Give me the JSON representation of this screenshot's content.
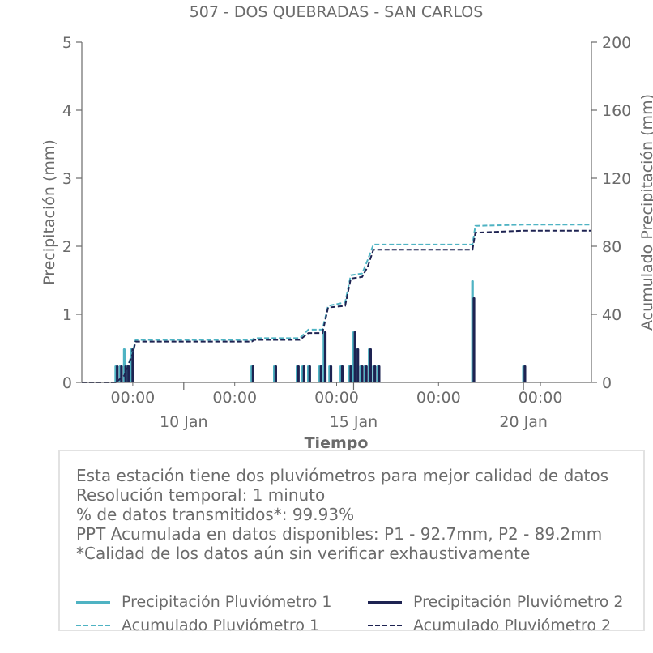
{
  "chart_data": {
    "type": "bar+line",
    "title": "507 - DOS QUEBRADAS - SAN CARLOS",
    "xlabel": "Tiempo",
    "ylabel": "Precipitación (mm)",
    "y2label": "Acumulado Precipitación (mm)",
    "ylim": [
      0,
      5
    ],
    "y2lim": [
      0,
      200
    ],
    "yticks": [
      "0",
      "1",
      "2",
      "3",
      "4",
      "5"
    ],
    "y2ticks": [
      "0",
      "40",
      "80",
      "120",
      "160",
      "200"
    ],
    "xlim": [
      "2024-01-07 00:00",
      "2024-01-22 00:00"
    ],
    "xticks_major": [
      {
        "x": "2024-01-10 00:00",
        "label": "10 Jan"
      },
      {
        "x": "2024-01-15 00:00",
        "label": "15 Jan"
      },
      {
        "x": "2024-01-20 00:00",
        "label": "20 Jan"
      }
    ],
    "xticks_minor": [
      {
        "x": "2024-01-08 12:00",
        "label": "00:00"
      },
      {
        "x": "2024-01-11 12:00",
        "label": "00:00"
      },
      {
        "x": "2024-01-14 12:00",
        "label": "00:00"
      },
      {
        "x": "2024-01-17 12:00",
        "label": "00:00"
      },
      {
        "x": "2024-01-20 12:00",
        "label": "00:00"
      }
    ],
    "legend_position": "bottom",
    "series": [
      {
        "name": "Precipitación Pluviómetro 1",
        "kind": "bar",
        "axis": "left",
        "color": "#4fb3c3",
        "points": [
          [
            "2024-01-08 00:00",
            0.25
          ],
          [
            "2024-01-08 03:00",
            0.25
          ],
          [
            "2024-01-08 06:00",
            0.5
          ],
          [
            "2024-01-08 08:00",
            0.25
          ],
          [
            "2024-01-08 11:00",
            0.5
          ],
          [
            "2024-01-12 00:00",
            0.25
          ],
          [
            "2024-01-12 16:00",
            0.25
          ],
          [
            "2024-01-13 08:00",
            0.25
          ],
          [
            "2024-01-13 12:00",
            0.25
          ],
          [
            "2024-01-13 16:00",
            0.25
          ],
          [
            "2024-01-14 00:00",
            0.25
          ],
          [
            "2024-01-14 03:00",
            0.75
          ],
          [
            "2024-01-14 07:00",
            0.25
          ],
          [
            "2024-01-14 15:00",
            0.25
          ],
          [
            "2024-01-14 21:00",
            0.25
          ],
          [
            "2024-01-15 00:00",
            0.75
          ],
          [
            "2024-01-15 02:00",
            0.5
          ],
          [
            "2024-01-15 05:00",
            0.25
          ],
          [
            "2024-01-15 08:00",
            0.25
          ],
          [
            "2024-01-15 11:00",
            0.5
          ],
          [
            "2024-01-15 14:00",
            0.25
          ],
          [
            "2024-01-15 17:00",
            0.25
          ],
          [
            "2024-01-18 12:00",
            1.5
          ],
          [
            "2024-01-20 00:00",
            0.25
          ]
        ]
      },
      {
        "name": "Precipitación Pluviómetro 2",
        "kind": "bar",
        "axis": "left",
        "color": "#1e2352",
        "points": [
          [
            "2024-01-08 01:00",
            0.25
          ],
          [
            "2024-01-08 04:00",
            0.25
          ],
          [
            "2024-01-08 07:00",
            0.25
          ],
          [
            "2024-01-08 09:00",
            0.25
          ],
          [
            "2024-01-08 12:00",
            0.5
          ],
          [
            "2024-01-12 01:00",
            0.25
          ],
          [
            "2024-01-12 17:00",
            0.25
          ],
          [
            "2024-01-13 09:00",
            0.25
          ],
          [
            "2024-01-13 13:00",
            0.25
          ],
          [
            "2024-01-13 17:00",
            0.25
          ],
          [
            "2024-01-14 01:00",
            0.25
          ],
          [
            "2024-01-14 04:00",
            0.75
          ],
          [
            "2024-01-14 08:00",
            0.25
          ],
          [
            "2024-01-14 16:00",
            0.25
          ],
          [
            "2024-01-14 22:00",
            0.25
          ],
          [
            "2024-01-15 01:00",
            0.75
          ],
          [
            "2024-01-15 03:00",
            0.5
          ],
          [
            "2024-01-15 06:00",
            0.25
          ],
          [
            "2024-01-15 09:00",
            0.25
          ],
          [
            "2024-01-15 12:00",
            0.5
          ],
          [
            "2024-01-15 15:00",
            0.25
          ],
          [
            "2024-01-15 18:00",
            0.25
          ],
          [
            "2024-01-18 13:00",
            1.25
          ],
          [
            "2024-01-20 01:00",
            0.25
          ]
        ]
      },
      {
        "name": "Acumulado Pluviómetro 1",
        "kind": "line",
        "axis": "right",
        "style": "dashed",
        "color": "#4fb3c3",
        "points": [
          [
            "2024-01-07 00:00",
            0
          ],
          [
            "2024-01-08 00:00",
            0
          ],
          [
            "2024-01-08 06:00",
            4
          ],
          [
            "2024-01-08 12:00",
            18
          ],
          [
            "2024-01-08 14:00",
            25
          ],
          [
            "2024-01-12 00:00",
            25
          ],
          [
            "2024-01-12 02:00",
            26
          ],
          [
            "2024-01-13 10:00",
            26
          ],
          [
            "2024-01-13 16:00",
            31
          ],
          [
            "2024-01-14 02:00",
            31
          ],
          [
            "2024-01-14 06:00",
            45
          ],
          [
            "2024-01-14 18:00",
            47
          ],
          [
            "2024-01-14 22:00",
            63
          ],
          [
            "2024-01-15 06:00",
            64
          ],
          [
            "2024-01-15 10:00",
            72
          ],
          [
            "2024-01-15 14:00",
            81
          ],
          [
            "2024-01-18 12:00",
            81
          ],
          [
            "2024-01-18 14:00",
            92
          ],
          [
            "2024-01-20 00:00",
            92.7
          ],
          [
            "2024-01-22 00:00",
            92.7
          ]
        ]
      },
      {
        "name": "Acumulado Pluviómetro 2",
        "kind": "line",
        "axis": "right",
        "style": "dashed",
        "color": "#1e2352",
        "points": [
          [
            "2024-01-07 00:00",
            0
          ],
          [
            "2024-01-08 00:00",
            0
          ],
          [
            "2024-01-08 06:00",
            4
          ],
          [
            "2024-01-08 12:00",
            17
          ],
          [
            "2024-01-08 14:00",
            24
          ],
          [
            "2024-01-12 00:00",
            24
          ],
          [
            "2024-01-12 02:00",
            25
          ],
          [
            "2024-01-13 10:00",
            25
          ],
          [
            "2024-01-13 16:00",
            29
          ],
          [
            "2024-01-14 02:00",
            29
          ],
          [
            "2024-01-14 06:00",
            44
          ],
          [
            "2024-01-14 18:00",
            45
          ],
          [
            "2024-01-14 22:00",
            61
          ],
          [
            "2024-01-15 06:00",
            62
          ],
          [
            "2024-01-15 10:00",
            68
          ],
          [
            "2024-01-15 14:00",
            78
          ],
          [
            "2024-01-18 12:00",
            78
          ],
          [
            "2024-01-18 14:00",
            88
          ],
          [
            "2024-01-20 00:00",
            89.2
          ],
          [
            "2024-01-22 00:00",
            89.2
          ]
        ]
      }
    ]
  },
  "info": {
    "lines": [
      "Esta estación tiene dos pluviómetros para mejor calidad de datos",
      "Resolución temporal: 1 minuto",
      "% de datos transmitidos*: 99.93%",
      "PPT Acumulada en datos disponibles: P1 - 92.7mm, P2 - 89.2mm",
      "*Calidad de los datos aún sin verificar exhaustivamente"
    ]
  },
  "colors": {
    "p1": "#4fb3c3",
    "p2": "#1e2352",
    "axis": "#6b6b6b",
    "box_border": "#e2e2e2"
  }
}
